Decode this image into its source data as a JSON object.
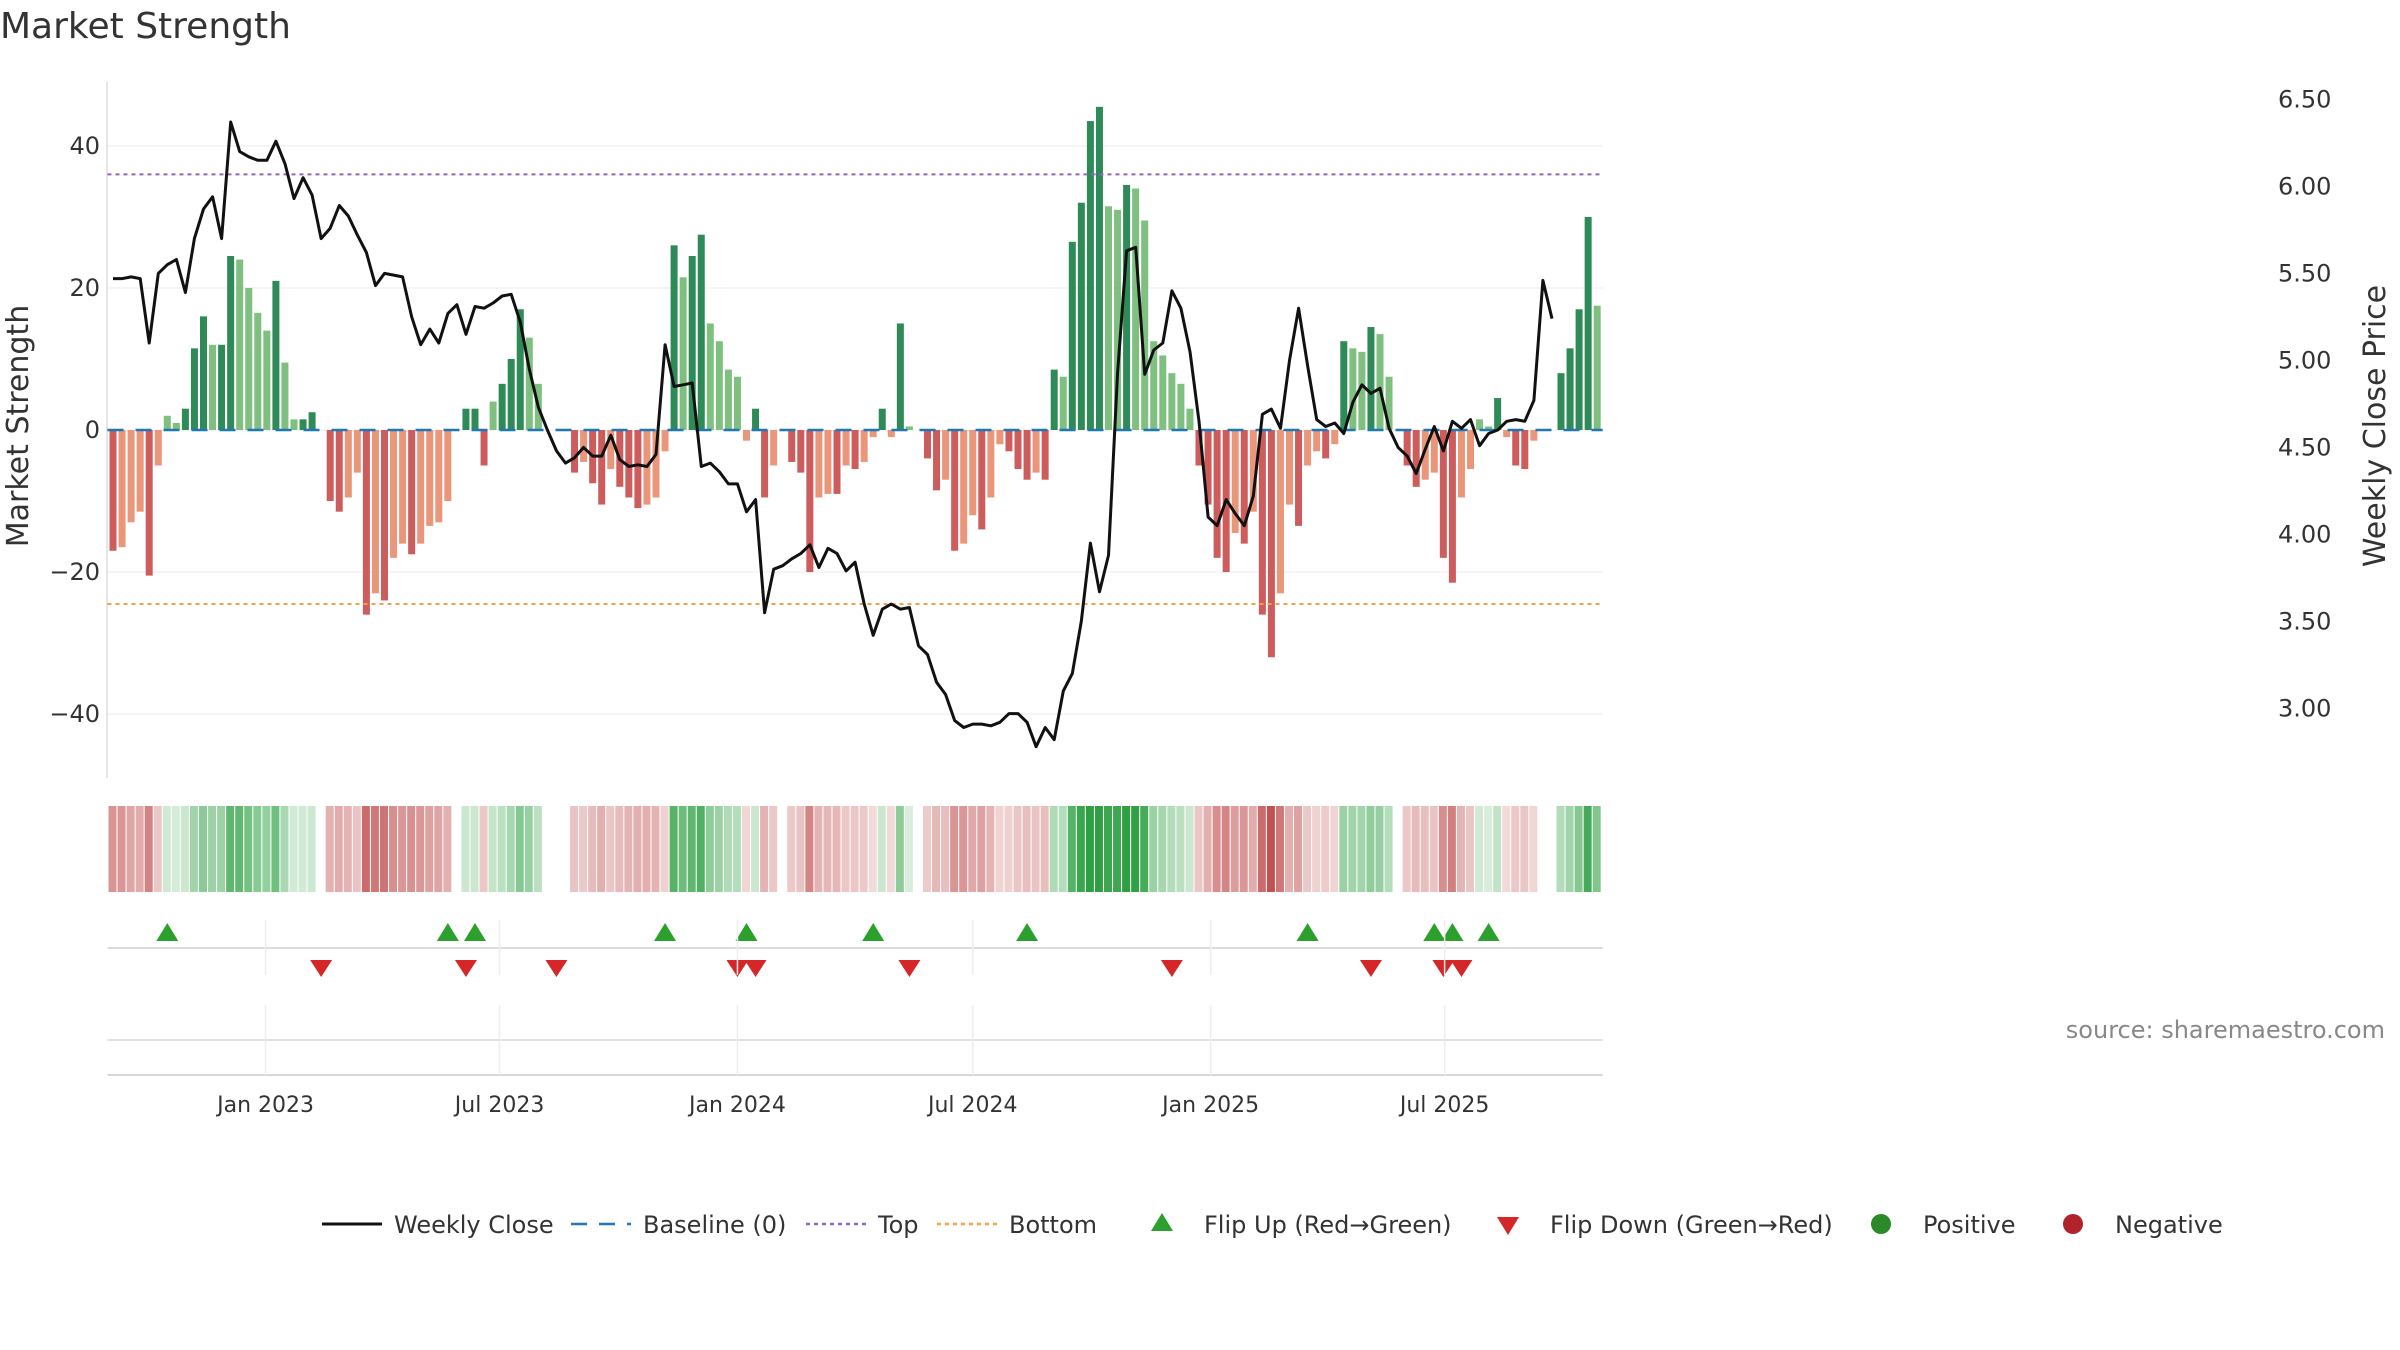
{
  "title": "Market Strength",
  "source": "source: sharemaestro.com",
  "chart_data": {
    "type": "bar",
    "title": "Market Strength",
    "ylabel": "Market Strength",
    "y2label": "Weekly Close Price",
    "ylim": [
      -49,
      49
    ],
    "y2lim": [
      2.6,
      6.6
    ],
    "yticks": [
      {
        "v": 40,
        "label": "40"
      },
      {
        "v": 20,
        "label": "20"
      },
      {
        "v": 0,
        "label": "0"
      },
      {
        "v": -20,
        "label": "−20"
      },
      {
        "v": -40,
        "label": "−40"
      }
    ],
    "y2ticks": [
      "6.50",
      "6.00",
      "5.50",
      "5.00",
      "4.50",
      "4.00",
      "3.50",
      "3.00"
    ],
    "x_start": "2022-09-05",
    "x_ticks": [
      {
        "date": "2023-01-01",
        "label": "Jan 2023"
      },
      {
        "date": "2023-07-01",
        "label": "Jul 2023"
      },
      {
        "date": "2024-01-01",
        "label": "Jan 2024"
      },
      {
        "date": "2024-07-01",
        "label": "Jul 2024"
      },
      {
        "date": "2025-01-01",
        "label": "Jan 2025"
      },
      {
        "date": "2025-07-01",
        "label": "Jul 2025"
      }
    ],
    "grid": true,
    "legend_position": "bottom",
    "reference_lines": {
      "top": 36,
      "bottom": -24.5,
      "baseline": 0
    },
    "strength": [
      -17,
      -16.5,
      -13,
      -11.5,
      -20.5,
      -5,
      2,
      1,
      3,
      11.5,
      16,
      12,
      12,
      24.5,
      24,
      20,
      16.5,
      14,
      21,
      9.5,
      1.5,
      1.5,
      2.5,
      0,
      -10,
      -11.5,
      -9.5,
      -6,
      -26,
      -23,
      -24,
      -18,
      -16,
      -17.5,
      -16,
      -13.5,
      -13,
      -10,
      0,
      3,
      3,
      -5,
      4,
      6.5,
      10,
      17,
      13,
      6.5,
      0,
      0,
      0,
      -6,
      -4.5,
      -7.5,
      -10.5,
      -5.5,
      -8,
      -9.5,
      -11,
      -10.5,
      -9.5,
      -3,
      26,
      21.5,
      24.5,
      27.5,
      15,
      12.5,
      8.5,
      7.5,
      -1.5,
      3,
      -9.5,
      -5,
      0,
      -4.5,
      -6,
      -20,
      -9.5,
      -9,
      -9,
      -5,
      -5.5,
      -4.5,
      -1,
      3,
      -1,
      15,
      0.5,
      0,
      -4,
      -8.5,
      -7,
      -17,
      -16,
      -12,
      -14,
      -9.5,
      -2,
      -3,
      -5.5,
      -7,
      -6,
      -7,
      8.5,
      7.5,
      26.5,
      32,
      43.5,
      45.5,
      31.5,
      31,
      34.5,
      34,
      29.5,
      12.5,
      10.5,
      8,
      6.5,
      3,
      -5,
      -10.5,
      -18,
      -20,
      -14.5,
      -16,
      -11.5,
      -26,
      -32,
      -23,
      -10.5,
      -13.5,
      -5,
      -3,
      -4,
      -2,
      12.5,
      11.5,
      11,
      14.5,
      13.5,
      7.5,
      0,
      -5,
      -8,
      -7,
      -6,
      -18,
      -21.5,
      -9.5,
      -5.5,
      1.5,
      0.5,
      4.5,
      -1,
      -5,
      -5.5,
      -1.5,
      0,
      0,
      8,
      11.5,
      17,
      30,
      17.5
    ],
    "weekly_close": [
      5.47,
      5.47,
      5.48,
      5.47,
      5.1,
      5.5,
      5.55,
      5.58,
      5.39,
      5.7,
      5.87,
      5.94,
      5.7,
      6.37,
      6.2,
      6.17,
      6.15,
      6.15,
      6.26,
      6.13,
      5.93,
      6.05,
      5.95,
      5.7,
      5.76,
      5.89,
      5.83,
      5.72,
      5.62,
      5.43,
      5.5,
      5.49,
      5.48,
      5.25,
      5.09,
      5.18,
      5.1,
      5.27,
      5.32,
      5.15,
      5.31,
      5.3,
      5.33,
      5.37,
      5.38,
      5.22,
      4.95,
      4.73,
      4.6,
      4.48,
      4.41,
      4.44,
      4.5,
      4.45,
      4.45,
      4.57,
      4.43,
      4.39,
      4.4,
      4.39,
      4.46,
      5.09,
      4.85,
      4.86,
      4.87,
      4.39,
      4.41,
      4.36,
      4.29,
      4.29,
      4.13,
      4.2,
      3.55,
      3.8,
      3.82,
      3.86,
      3.89,
      3.94,
      3.81,
      3.92,
      3.89,
      3.79,
      3.84,
      3.6,
      3.42,
      3.57,
      3.6,
      3.57,
      3.58,
      3.36,
      3.31,
      3.15,
      3.08,
      2.93,
      2.89,
      2.91,
      2.91,
      2.9,
      2.92,
      2.97,
      2.97,
      2.92,
      2.78,
      2.89,
      2.82,
      3.1,
      3.2,
      3.5,
      3.95,
      3.67,
      3.88,
      4.93,
      5.63,
      5.65,
      4.92,
      5.06,
      5.1,
      5.4,
      5.3,
      5.05,
      4.65,
      4.1,
      4.05,
      4.2,
      4.12,
      4.05,
      4.22,
      4.69,
      4.72,
      4.61,
      5.0,
      5.3,
      4.97,
      4.66,
      4.62,
      4.64,
      4.58,
      4.76,
      4.86,
      4.81,
      4.84,
      4.61,
      4.5,
      4.45,
      4.35,
      4.49,
      4.62,
      4.48,
      4.65,
      4.61,
      4.66,
      4.51,
      4.58,
      4.6,
      4.65,
      4.66,
      4.65,
      4.77,
      5.46,
      5.24
    ],
    "flip_up_idx": [
      6,
      37,
      40,
      61,
      70,
      84,
      101,
      132,
      146,
      148,
      152
    ],
    "flip_down_idx": [
      23,
      39,
      49,
      69,
      71,
      88,
      117,
      139,
      147,
      149
    ]
  },
  "legend": [
    {
      "label": "Weekly Close",
      "kind": "line",
      "color": "#111111"
    },
    {
      "label": "Baseline (0)",
      "kind": "dashed",
      "color": "#1f77b4"
    },
    {
      "label": "Top",
      "kind": "dotted",
      "color": "#9467bd"
    },
    {
      "label": "Bottom",
      "kind": "dotted",
      "color": "#ff9f3c"
    },
    {
      "label": "Flip Up (Red→Green)",
      "kind": "up",
      "color": "#2ca02c"
    },
    {
      "label": "Flip Down (Green→Red)",
      "kind": "down",
      "color": "#d62728"
    },
    {
      "label": "Positive",
      "kind": "dot",
      "color": "#2a8a2a"
    },
    {
      "label": "Negative",
      "kind": "dot",
      "color": "#b2222a"
    }
  ],
  "colors": {
    "pos_strong": "#2e8b57",
    "pos_weak": "#7fbf7f",
    "neg_strong": "#cd5c5c",
    "neg_weak": "#e9967a",
    "close_line": "#111111",
    "top_line": "#9467bd",
    "bottom_line": "#f4a04a",
    "baseline": "#1f77b4",
    "flip_up": "#2ca02c",
    "flip_down": "#d62728"
  }
}
